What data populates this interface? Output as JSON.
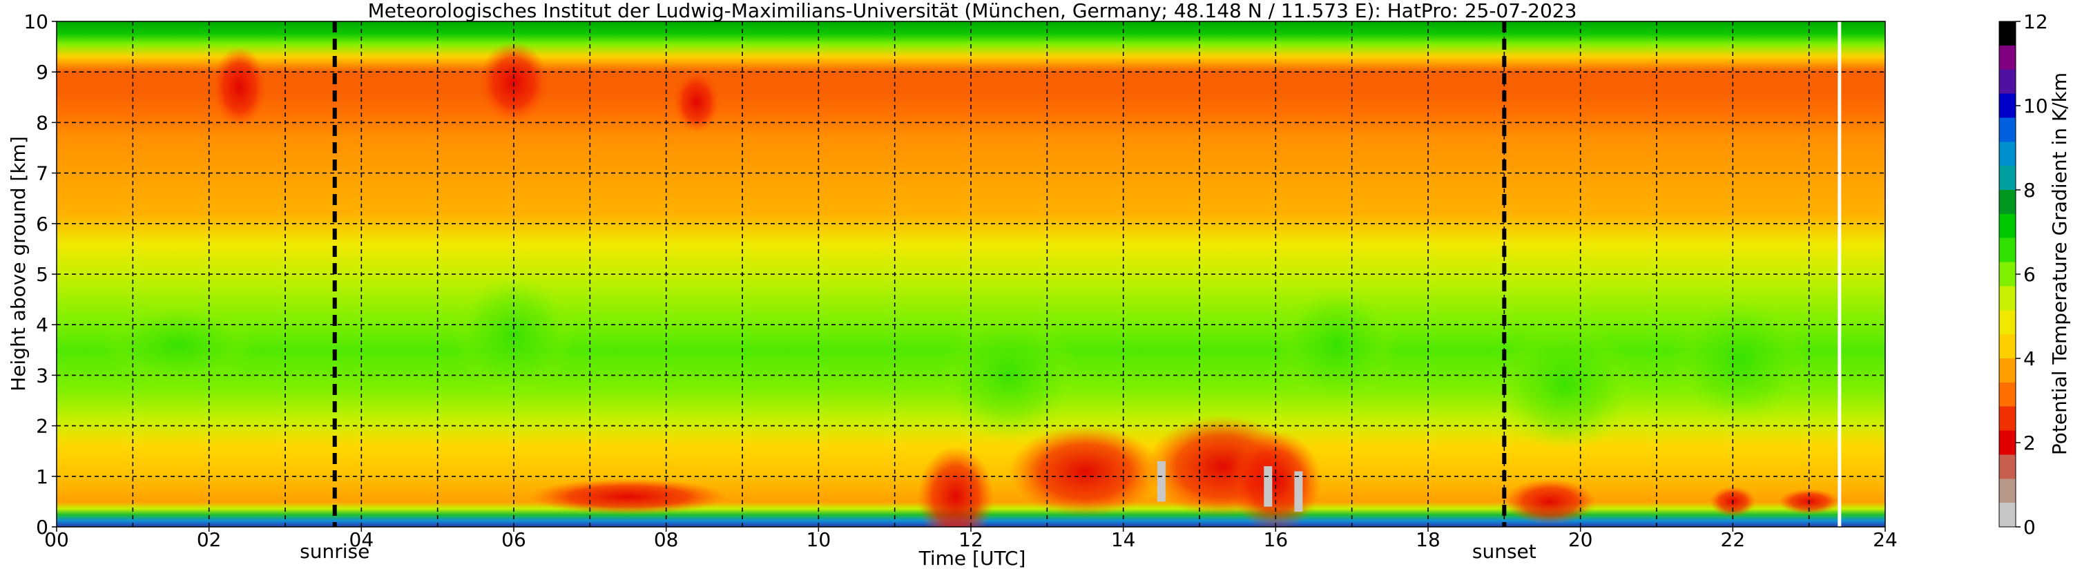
{
  "chart_data": {
    "type": "heatmap",
    "title": "Meteorologisches Institut der Ludwig-Maximilians-Universität (München, Germany; 48.148 N / 11.573 E):    HatPro: 25-07-2023",
    "xlabel": "Time [UTC]",
    "ylabel": "Height above ground [km]",
    "xlim": [
      0,
      24
    ],
    "ylim": [
      0,
      10
    ],
    "x_ticks": [
      "00",
      "02",
      "04",
      "06",
      "08",
      "10",
      "12",
      "14",
      "16",
      "18",
      "20",
      "22",
      "24"
    ],
    "y_ticks": [
      "0",
      "1",
      "2",
      "3",
      "4",
      "5",
      "6",
      "7",
      "8",
      "9",
      "10"
    ],
    "grid": true,
    "colorbar": {
      "label": "Potential Temperature Gradient in K/km",
      "range": [
        0,
        12
      ],
      "ticks": [
        "0",
        "2",
        "4",
        "6",
        "8",
        "10",
        "12"
      ],
      "colors": [
        "#c8c8c8",
        "#b89888",
        "#c86050",
        "#e00000",
        "#f03000",
        "#ff7000",
        "#ffa000",
        "#ffd000",
        "#f0e800",
        "#c8f000",
        "#80f000",
        "#30e000",
        "#00c800",
        "#009820",
        "#00a0a0",
        "#0090d0",
        "#0060e0",
        "#0000c8",
        "#5010a0",
        "#800080",
        "#000000"
      ]
    },
    "markers": [
      {
        "label": "sunrise",
        "x": 3.65
      },
      {
        "label": "sunset",
        "x": 19.0
      }
    ],
    "missing_data_at": 23.4
  }
}
